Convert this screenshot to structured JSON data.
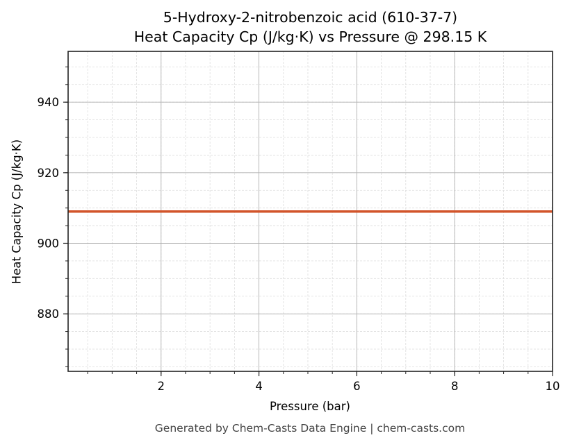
{
  "title": {
    "line1": "5-Hydroxy-2-nitrobenzoic acid (610-37-7)",
    "line2": "Heat Capacity Cp (J/kg·K) vs Pressure @ 298.15 K"
  },
  "footer": "Generated by Chem-Casts Data Engine | chem-casts.com",
  "colors": {
    "series": "#d2542a",
    "major_grid": "#b0b0b0",
    "minor_grid": "#dddddd",
    "axes": "#222222",
    "footer_text": "#444444"
  },
  "chart_data": {
    "type": "line",
    "title": "5-Hydroxy-2-nitrobenzoic acid (610-37-7)\nHeat Capacity Cp (J/kg·K) vs Pressure @ 298.15 K",
    "xlabel": "Pressure (bar)",
    "ylabel": "Heat Capacity Cp (J/kg·K)",
    "xlim": [
      0.1,
      10
    ],
    "ylim": [
      863.7,
      954.4
    ],
    "xticks": [
      2,
      4,
      6,
      8,
      10
    ],
    "xtick_labels": [
      "2",
      "4",
      "6",
      "8",
      "10"
    ],
    "x_minor_step": 0.5,
    "yticks": [
      880,
      900,
      920,
      940
    ],
    "ytick_labels": [
      "880",
      "900",
      "920",
      "940"
    ],
    "y_minor_step": 5,
    "grid": {
      "major": true,
      "minor": true
    },
    "legend": null,
    "series": [
      {
        "name": "Cp",
        "x": [
          0.1,
          10
        ],
        "y": [
          909.0,
          909.0
        ],
        "color": "#d2542a"
      }
    ]
  }
}
